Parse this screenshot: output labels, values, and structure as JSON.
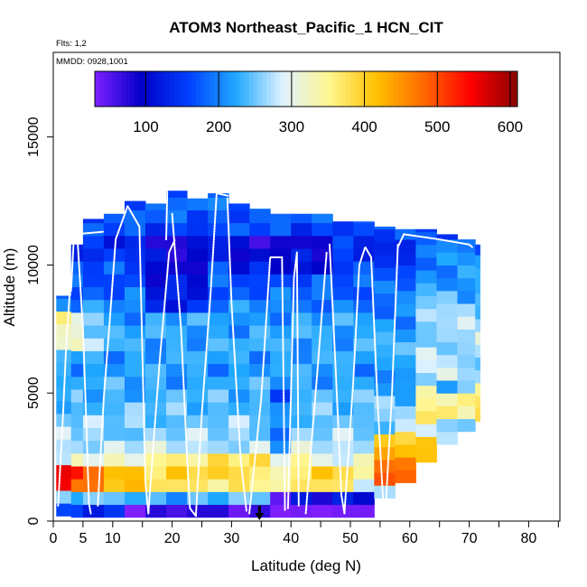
{
  "chart_data": {
    "type": "heatmap",
    "title": "ATOM3 Northeast_Pacific_1 HCN_CIT",
    "flights_label": "Flts: 1,2",
    "mmdd_label": "MMDD: 0928,1001",
    "xlabel": "Latitude (deg N)",
    "ylabel": "Altitude (m)",
    "xlim": [
      0,
      85
    ],
    "ylim": [
      0,
      18000
    ],
    "x_ticks": [
      0,
      5,
      10,
      20,
      30,
      40,
      50,
      60,
      70,
      80
    ],
    "y_ticks": [
      0,
      5000,
      10000,
      15000
    ],
    "colorbar": {
      "range": [
        30,
        610
      ],
      "ticks": [
        100,
        200,
        300,
        400,
        500,
        600
      ],
      "colors": [
        "#7f1fff",
        "#0000c8",
        "#0040ff",
        "#1fa8ff",
        "#dff2ff",
        "#fff68f",
        "#ffc000",
        "#ff6a00",
        "#ff0000",
        "#8a0000"
      ]
    },
    "columns": [
      {
        "lat0": 0.5,
        "lat1": 3,
        "ztop": 8800,
        "zbot": 200
      },
      {
        "lat0": 3,
        "lat1": 5,
        "ztop": 10800,
        "zbot": 150
      },
      {
        "lat0": 5,
        "lat1": 8.5,
        "ztop": 11800,
        "zbot": 150
      },
      {
        "lat0": 8.5,
        "lat1": 12,
        "ztop": 12000,
        "zbot": 150
      },
      {
        "lat0": 12,
        "lat1": 15.5,
        "ztop": 12500,
        "zbot": 150
      },
      {
        "lat0": 15.5,
        "lat1": 19,
        "ztop": 12400,
        "zbot": 150
      },
      {
        "lat0": 19,
        "lat1": 22.5,
        "ztop": 12900,
        "zbot": 150
      },
      {
        "lat0": 22.5,
        "lat1": 26,
        "ztop": 12600,
        "zbot": 150
      },
      {
        "lat0": 26,
        "lat1": 29.5,
        "ztop": 12800,
        "zbot": 150
      },
      {
        "lat0": 29.5,
        "lat1": 33,
        "ztop": 12400,
        "zbot": 150
      },
      {
        "lat0": 33,
        "lat1": 36.5,
        "ztop": 12200,
        "zbot": 150
      },
      {
        "lat0": 36.5,
        "lat1": 40,
        "ztop": 12000,
        "zbot": 150
      },
      {
        "lat0": 40,
        "lat1": 43.5,
        "ztop": 12000,
        "zbot": 150
      },
      {
        "lat0": 43.5,
        "lat1": 47,
        "ztop": 12000,
        "zbot": 150
      },
      {
        "lat0": 47,
        "lat1": 50.5,
        "ztop": 11700,
        "zbot": 150
      },
      {
        "lat0": 50.5,
        "lat1": 54,
        "ztop": 11700,
        "zbot": 150
      },
      {
        "lat0": 54,
        "lat1": 57.5,
        "ztop": 11500,
        "zbot": 900
      },
      {
        "lat0": 57.5,
        "lat1": 61,
        "ztop": 11400,
        "zbot": 1500
      },
      {
        "lat0": 61,
        "lat1": 64.5,
        "ztop": 11400,
        "zbot": 2300
      },
      {
        "lat0": 64.5,
        "lat1": 68,
        "ztop": 11200,
        "zbot": 3000
      },
      {
        "lat0": 68,
        "lat1": 71,
        "ztop": 11000,
        "zbot": 3500
      },
      {
        "lat0": 71,
        "lat1": 71.8,
        "ztop": 10800,
        "zbot": 3900
      }
    ],
    "profile": [
      {
        "z": 0,
        "v": 80
      },
      {
        "z": 600,
        "v": 170
      },
      {
        "z": 1200,
        "v": 300
      },
      {
        "z": 1800,
        "v": 330
      },
      {
        "z": 2500,
        "v": 300
      },
      {
        "z": 3200,
        "v": 260
      },
      {
        "z": 4000,
        "v": 250
      },
      {
        "z": 5000,
        "v": 230
      },
      {
        "z": 6000,
        "v": 215
      },
      {
        "z": 7000,
        "v": 225
      },
      {
        "z": 8000,
        "v": 215
      },
      {
        "z": 9000,
        "v": 175
      },
      {
        "z": 10000,
        "v": 160
      },
      {
        "z": 10800,
        "v": 135
      },
      {
        "z": 11500,
        "v": 165
      },
      {
        "z": 12500,
        "v": 185
      },
      {
        "z": 13000,
        "v": 195
      }
    ],
    "anomalies": [
      {
        "lat0": 0.5,
        "lat1": 14,
        "z0": 1100,
        "z1": 2200,
        "dv": 260,
        "decay": 4
      },
      {
        "lat0": 0.5,
        "lat1": 9,
        "z0": 6500,
        "z1": 8200,
        "dv": 150,
        "decay": 2
      },
      {
        "lat0": 15,
        "lat1": 42,
        "z0": 1400,
        "z1": 2500,
        "dv": 60
      },
      {
        "lat0": 45,
        "lat1": 52,
        "z0": 1400,
        "z1": 2200,
        "dv": 60
      },
      {
        "lat0": 53,
        "lat1": 63,
        "z0": 1400,
        "z1": 3300,
        "dv": 150
      },
      {
        "lat0": 60,
        "lat1": 72,
        "z0": 3800,
        "z1": 5200,
        "dv": 120
      },
      {
        "lat0": 16,
        "lat1": 27,
        "z0": 8000,
        "z1": 11000,
        "dv": -60
      },
      {
        "lat0": 28,
        "lat1": 47,
        "z0": 9800,
        "z1": 11000,
        "dv": -50
      },
      {
        "lat0": 37,
        "lat1": 53,
        "z0": 0,
        "z1": 1000,
        "dv": -120
      },
      {
        "lat0": 12,
        "lat1": 35,
        "z0": 0,
        "z1": 600,
        "dv": -80
      },
      {
        "lat0": 15,
        "lat1": 17,
        "z0": 800,
        "z1": 6000,
        "dv": -40
      },
      {
        "lat0": 38,
        "lat1": 41,
        "z0": 800,
        "z1": 5000,
        "dv": -60
      },
      {
        "lat0": 60,
        "lat1": 72,
        "z0": 5500,
        "z1": 11000,
        "dv": 50
      }
    ],
    "flight_tracks": [
      [
        [
          0.8,
          600
        ],
        [
          1.5,
          3500
        ],
        [
          2.2,
          7000
        ],
        [
          2.8,
          9000
        ]
      ],
      [
        [
          3,
          9000
        ],
        [
          3.5,
          11200
        ],
        [
          8.5,
          11300
        ]
      ],
      [
        [
          4,
          11300
        ],
        [
          5,
          7500
        ],
        [
          5.5,
          4200
        ],
        [
          6,
          700
        ],
        [
          6.3,
          300
        ]
      ],
      [
        [
          7.5,
          600
        ],
        [
          8.5,
          4800
        ],
        [
          9.5,
          7800
        ],
        [
          10.5,
          11000
        ],
        [
          12.5,
          12300
        ],
        [
          14.5,
          11500
        ],
        [
          15.5,
          1500
        ],
        [
          16,
          300
        ]
      ],
      [
        [
          16,
          300
        ],
        [
          17,
          3500
        ],
        [
          18,
          6500
        ],
        [
          19.5,
          10500
        ],
        [
          20.5,
          11000
        ]
      ],
      [
        [
          19,
          11000
        ],
        [
          19.2,
          13000
        ]
      ],
      [
        [
          20,
          12000
        ],
        [
          21.5,
          7500
        ],
        [
          22.5,
          2500
        ],
        [
          23,
          500
        ],
        [
          24,
          200
        ]
      ],
      [
        [
          24,
          200
        ],
        [
          25,
          4200
        ],
        [
          26.5,
          9000
        ],
        [
          27.5,
          12800
        ],
        [
          29.5,
          12700
        ]
      ],
      [
        [
          29.3,
          12600
        ],
        [
          30,
          8500
        ],
        [
          31.5,
          2500
        ],
        [
          32.5,
          400
        ]
      ],
      [
        [
          33,
          300
        ],
        [
          35,
          4800
        ],
        [
          36.5,
          10300
        ],
        [
          38.5,
          10300
        ],
        [
          39,
          400
        ]
      ],
      [
        [
          39.5,
          500
        ],
        [
          40.5,
          9500
        ],
        [
          41,
          10500
        ],
        [
          41.3,
          600
        ]
      ],
      [
        [
          42.5,
          300
        ],
        [
          44.5,
          6000
        ],
        [
          46,
          10500
        ]
      ],
      [
        [
          46.5,
          10800
        ],
        [
          47.5,
          6000
        ],
        [
          48.5,
          1000
        ],
        [
          49,
          300
        ]
      ],
      [
        [
          49,
          300
        ],
        [
          50.5,
          5500
        ],
        [
          51.5,
          10000
        ],
        [
          52.5,
          10700
        ],
        [
          53.5,
          10300
        ]
      ],
      [
        [
          53.5,
          10300
        ],
        [
          54.5,
          5000
        ],
        [
          55.5,
          800
        ]
      ],
      [
        [
          56,
          800
        ],
        [
          57,
          5000
        ],
        [
          58,
          10800
        ]
      ],
      [
        [
          58,
          10700
        ],
        [
          59,
          11200
        ],
        [
          65,
          11000
        ],
        [
          70,
          10800
        ],
        [
          70.5,
          10700
        ]
      ]
    ],
    "marker": {
      "lat": 34.7,
      "z_top": 600,
      "z_bottom": 0
    }
  }
}
